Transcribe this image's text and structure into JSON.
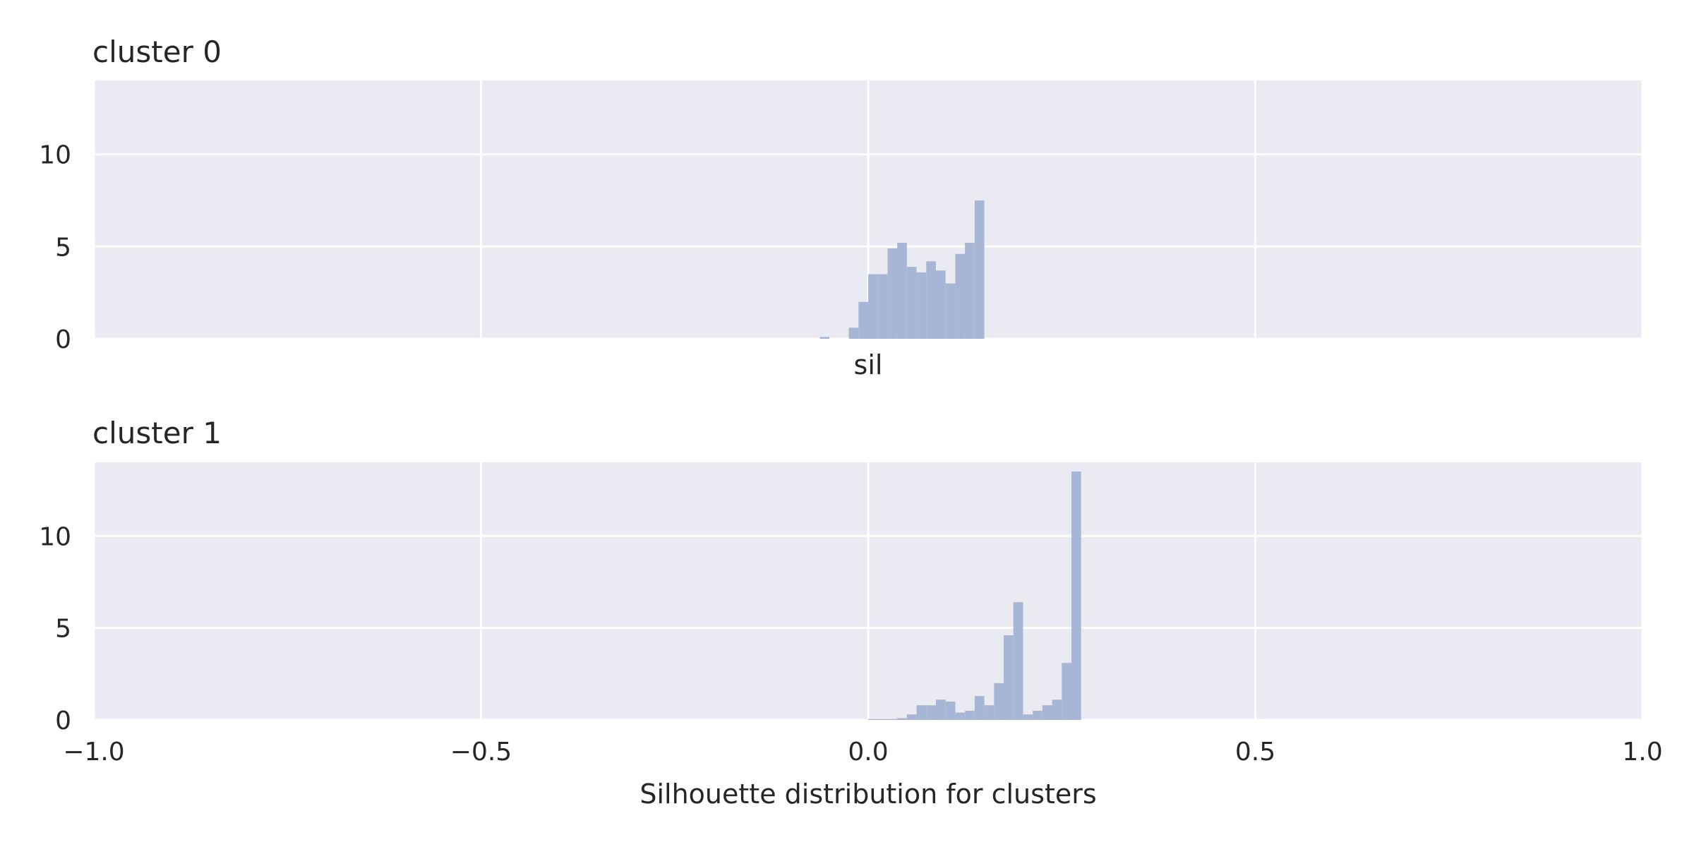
{
  "chart_data": [
    {
      "type": "histogram",
      "title": "cluster 0",
      "xlabel": "sil",
      "ylabel": "",
      "xlim": [
        -1.0,
        1.0
      ],
      "ylim": [
        0,
        14
      ],
      "yticks": [
        0,
        5,
        10
      ],
      "xticks": [
        -1.0,
        -0.5,
        0.0,
        0.5,
        1.0
      ],
      "show_xtick_labels": false,
      "grid": true,
      "bar_color": "#a8b6d6",
      "bins": [
        {
          "x0": -0.0625,
          "x1": -0.05,
          "value": 0.1
        },
        {
          "x0": -0.025,
          "x1": -0.0125,
          "value": 0.6
        },
        {
          "x0": -0.0125,
          "x1": 0.0,
          "value": 2.0
        },
        {
          "x0": 0.0,
          "x1": 0.0125,
          "value": 3.5
        },
        {
          "x0": 0.0125,
          "x1": 0.025,
          "value": 3.5
        },
        {
          "x0": 0.025,
          "x1": 0.0375,
          "value": 4.9
        },
        {
          "x0": 0.0375,
          "x1": 0.05,
          "value": 5.2
        },
        {
          "x0": 0.05,
          "x1": 0.0625,
          "value": 3.9
        },
        {
          "x0": 0.0625,
          "x1": 0.075,
          "value": 3.6
        },
        {
          "x0": 0.075,
          "x1": 0.0875,
          "value": 4.2
        },
        {
          "x0": 0.0875,
          "x1": 0.1,
          "value": 3.7
        },
        {
          "x0": 0.1,
          "x1": 0.1125,
          "value": 3.0
        },
        {
          "x0": 0.1125,
          "x1": 0.125,
          "value": 4.6
        },
        {
          "x0": 0.125,
          "x1": 0.1375,
          "value": 5.2
        },
        {
          "x0": 0.1375,
          "x1": 0.15,
          "value": 7.5
        }
      ]
    },
    {
      "type": "histogram",
      "title": "cluster 1",
      "xlabel": "Silhouette distribution for clusters",
      "ylabel": "",
      "xlim": [
        -1.0,
        1.0
      ],
      "ylim": [
        0,
        14
      ],
      "yticks": [
        0,
        5,
        10
      ],
      "xticks": [
        -1.0,
        -0.5,
        0.0,
        0.5,
        1.0
      ],
      "xtick_labels": [
        "−1.0",
        "−0.5",
        "0.0",
        "0.5",
        "1.0"
      ],
      "show_xtick_labels": true,
      "grid": true,
      "bar_color": "#a8b6d6",
      "bins": [
        {
          "x0": 0.0,
          "x1": 0.0125,
          "value": 0.05
        },
        {
          "x0": 0.0125,
          "x1": 0.025,
          "value": 0.05
        },
        {
          "x0": 0.025,
          "x1": 0.0375,
          "value": 0.05
        },
        {
          "x0": 0.0375,
          "x1": 0.05,
          "value": 0.1
        },
        {
          "x0": 0.05,
          "x1": 0.0625,
          "value": 0.3
        },
        {
          "x0": 0.0625,
          "x1": 0.075,
          "value": 0.8
        },
        {
          "x0": 0.075,
          "x1": 0.0875,
          "value": 0.8
        },
        {
          "x0": 0.0875,
          "x1": 0.1,
          "value": 1.1
        },
        {
          "x0": 0.1,
          "x1": 0.1125,
          "value": 1.0
        },
        {
          "x0": 0.1125,
          "x1": 0.125,
          "value": 0.4
        },
        {
          "x0": 0.125,
          "x1": 0.1375,
          "value": 0.5
        },
        {
          "x0": 0.1375,
          "x1": 0.15,
          "value": 1.3
        },
        {
          "x0": 0.15,
          "x1": 0.1625,
          "value": 0.8
        },
        {
          "x0": 0.1625,
          "x1": 0.175,
          "value": 2.0
        },
        {
          "x0": 0.175,
          "x1": 0.1875,
          "value": 4.6
        },
        {
          "x0": 0.1875,
          "x1": 0.2,
          "value": 6.4
        },
        {
          "x0": 0.2,
          "x1": 0.2125,
          "value": 0.3
        },
        {
          "x0": 0.2125,
          "x1": 0.225,
          "value": 0.5
        },
        {
          "x0": 0.225,
          "x1": 0.2375,
          "value": 0.8
        },
        {
          "x0": 0.2375,
          "x1": 0.25,
          "value": 1.1
        },
        {
          "x0": 0.25,
          "x1": 0.2625,
          "value": 3.1
        },
        {
          "x0": 0.2625,
          "x1": 0.275,
          "value": 13.5
        }
      ]
    }
  ]
}
